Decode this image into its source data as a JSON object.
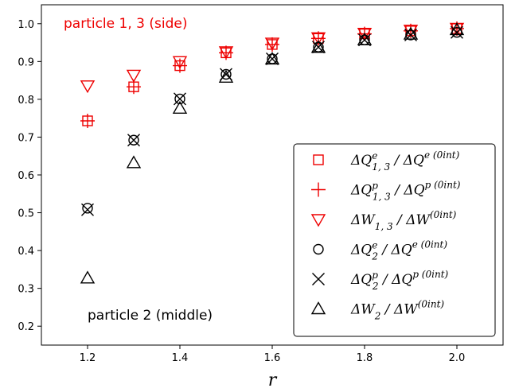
{
  "chart_data": {
    "type": "scatter",
    "xlabel": "r",
    "ylabel": "",
    "xlim": [
      1.1,
      2.1
    ],
    "ylim": [
      0.15,
      1.05
    ],
    "grid": false,
    "legend_placement": "lower-right",
    "x_ticks": [
      "1.2",
      "1.4",
      "1.6",
      "1.8",
      "2.0"
    ],
    "y_ticks": [
      "0.2",
      "0.3",
      "0.4",
      "0.5",
      "0.6",
      "0.7",
      "0.8",
      "0.9",
      "1.0"
    ],
    "annotations": [
      {
        "text": "particle 1, 3 (side)",
        "color": "#ee0000"
      },
      {
        "text": "particle 2 (middle)",
        "color": "#000000"
      }
    ],
    "series": [
      {
        "name": "ΔQ^e_{1,3} / ΔQ^{e(0int)}",
        "legend": {
          "base": "ΔQ",
          "sup": "e",
          "sub": "1, 3",
          "den": "ΔQ",
          "densup": "e (0int)"
        },
        "marker": "square",
        "color": "#ee0000",
        "x": [
          1.2,
          1.3,
          1.4,
          1.5,
          1.6,
          1.7,
          1.8,
          1.9,
          2.0
        ],
        "y": [
          0.743,
          0.833,
          0.889,
          0.923,
          0.945,
          0.961,
          0.973,
          0.981,
          0.987
        ]
      },
      {
        "name": "ΔQ^p_{1,3} / ΔQ^{p(0int)}",
        "legend": {
          "base": "ΔQ",
          "sup": "p",
          "sub": "1, 3",
          "den": "ΔQ",
          "densup": "p (0int)"
        },
        "marker": "plus",
        "color": "#ee0000",
        "x": [
          1.2,
          1.3,
          1.4,
          1.5,
          1.6,
          1.7,
          1.8,
          1.9,
          2.0
        ],
        "y": [
          0.743,
          0.833,
          0.889,
          0.923,
          0.945,
          0.961,
          0.973,
          0.981,
          0.987
        ]
      },
      {
        "name": "ΔW_{1,3} / ΔW^{(0int)}",
        "legend": {
          "base": "ΔW",
          "sup": "",
          "sub": "1, 3",
          "den": "ΔW",
          "densup": "(0int)"
        },
        "marker": "triangle-down",
        "color": "#ee0000",
        "x": [
          1.2,
          1.3,
          1.4,
          1.5,
          1.6,
          1.7,
          1.8,
          1.9,
          2.0
        ],
        "y": [
          0.836,
          0.864,
          0.9,
          0.926,
          0.949,
          0.963,
          0.975,
          0.983,
          0.988
        ]
      },
      {
        "name": "ΔQ^e_2 / ΔQ^{e(0int)}",
        "legend": {
          "base": "ΔQ",
          "sup": "e",
          "sub": "2",
          "den": "ΔQ",
          "densup": "e (0int)"
        },
        "marker": "circle",
        "color": "#000000",
        "x": [
          1.2,
          1.3,
          1.4,
          1.5,
          1.6,
          1.7,
          1.8,
          1.9,
          2.0
        ],
        "y": [
          0.512,
          0.692,
          0.801,
          0.866,
          0.907,
          0.938,
          0.957,
          0.97,
          0.977
        ]
      },
      {
        "name": "ΔQ^p_2 / ΔQ^{p(0int)}",
        "legend": {
          "base": "ΔQ",
          "sup": "p",
          "sub": "2",
          "den": "ΔQ",
          "densup": "p (0int)"
        },
        "marker": "x",
        "color": "#000000",
        "x": [
          1.2,
          1.3,
          1.4,
          1.5,
          1.6,
          1.7,
          1.8,
          1.9,
          2.0
        ],
        "y": [
          0.508,
          0.692,
          0.801,
          0.866,
          0.907,
          0.938,
          0.957,
          0.97,
          0.977
        ]
      },
      {
        "name": "ΔW_2 / ΔW^{(0int)}",
        "legend": {
          "base": "ΔW",
          "sup": "",
          "sub": "2",
          "den": "ΔW",
          "densup": "(0int)"
        },
        "marker": "triangle-up",
        "color": "#000000",
        "x": [
          1.2,
          1.3,
          1.4,
          1.5,
          1.6,
          1.7,
          1.8,
          1.9,
          2.0
        ],
        "y": [
          0.327,
          0.632,
          0.776,
          0.858,
          0.906,
          0.937,
          0.957,
          0.972,
          0.984
        ]
      }
    ]
  }
}
